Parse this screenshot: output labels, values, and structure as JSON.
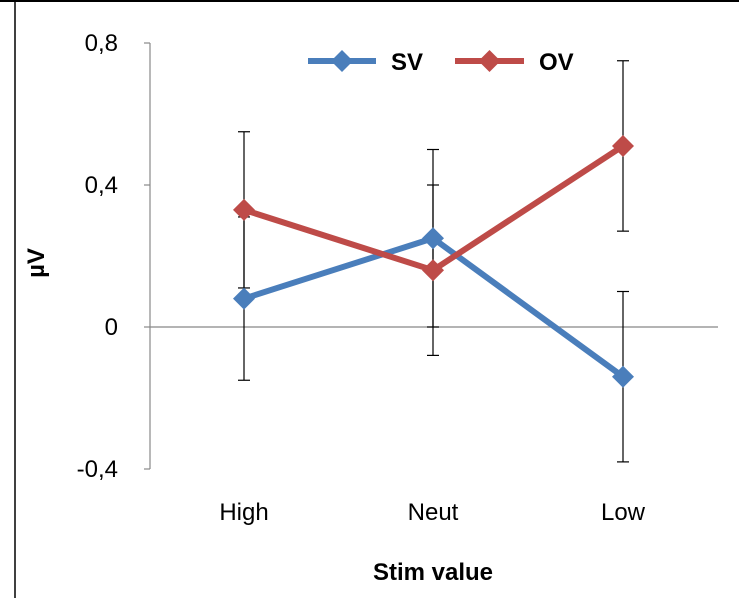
{
  "chart_data": {
    "type": "line",
    "categories": [
      "High",
      "Neut",
      "Low"
    ],
    "series": [
      {
        "name": "SV",
        "color": "#4a7ebb",
        "values": [
          0.08,
          0.25,
          -0.14
        ],
        "error": [
          0.23,
          0.25,
          0.24
        ]
      },
      {
        "name": "OV",
        "color": "#be4b48",
        "values": [
          0.33,
          0.16,
          0.51
        ],
        "error": [
          0.22,
          0.24,
          0.24
        ]
      }
    ],
    "ylabel": "µV",
    "xlabel": "Stim value",
    "ylim": [
      -0.4,
      0.8
    ],
    "yticks": [
      {
        "value": -0.4,
        "label": "-0,4"
      },
      {
        "value": 0,
        "label": "0"
      },
      {
        "value": 0.4,
        "label": "0,4"
      },
      {
        "value": 0.8,
        "label": "0,8"
      }
    ],
    "legend_position": "top-center",
    "grid": false
  }
}
